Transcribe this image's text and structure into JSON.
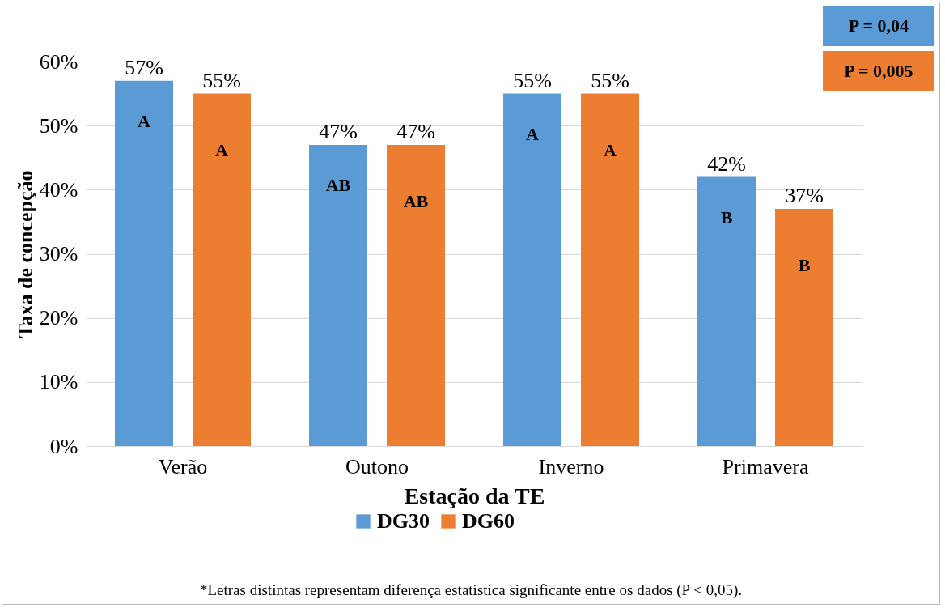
{
  "chart_data": {
    "type": "bar",
    "xlabel": "Estação da TE",
    "ylabel": "Taxa de concepção",
    "categories": [
      "Verão",
      "Outono",
      "Inverno",
      "Primavera"
    ],
    "series": [
      {
        "name": "DG30",
        "color": "#5b9bd5",
        "values": [
          57,
          47,
          55,
          42
        ],
        "value_labels": [
          "57%",
          "47%",
          "55%",
          "42%"
        ]
      },
      {
        "name": "DG60",
        "color": "#ed7d31",
        "values": [
          55,
          47,
          55,
          37
        ],
        "value_labels": [
          "55%",
          "47%",
          "55%",
          "37%"
        ]
      }
    ],
    "ylim": [
      0,
      60
    ],
    "yticks": [
      {
        "value": 0,
        "label": "0%"
      },
      {
        "value": 10,
        "label": "10%"
      },
      {
        "value": 20,
        "label": "20%"
      },
      {
        "value": 30,
        "label": "30%"
      },
      {
        "value": 40,
        "label": "40%"
      },
      {
        "value": 50,
        "label": "50%"
      },
      {
        "value": 60,
        "label": "60%"
      }
    ],
    "grid": "y",
    "legend": "bottom",
    "annotations": [
      "A",
      "A",
      "AB",
      "AB",
      "A",
      "A",
      "B",
      "B",
      "P = 0,04",
      "P = 0,005",
      "*Letras distintas representam diferença estatística significante entre os dados (P < 0,05)."
    ]
  }
}
